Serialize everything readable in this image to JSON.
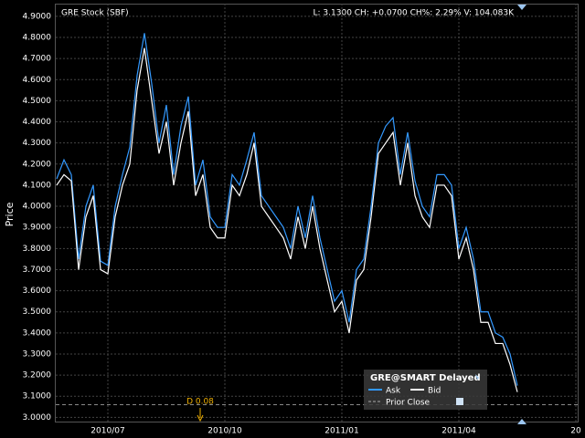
{
  "chart_data": {
    "type": "line",
    "title": "GRE Stock (SBF)",
    "stats": "L: 3.1300 CH: +0.0700 CH%: 2.29% V: 104.083K",
    "y_label": "Price",
    "annotation": "D 0.08",
    "legend_title": "GRE@SMART Delayed",
    "prior_close_label": "Prior Close",
    "prior_close": 3.06,
    "categories": [
      null,
      null,
      null,
      null,
      null,
      null,
      null,
      "2010/07",
      null,
      null,
      null,
      null,
      null,
      null,
      null,
      null,
      null,
      null,
      null,
      null,
      null,
      null,
      null,
      "2010/10",
      null,
      null,
      null,
      null,
      null,
      null,
      null,
      null,
      null,
      null,
      null,
      null,
      null,
      null,
      null,
      "2011/01",
      null,
      null,
      null,
      null,
      null,
      null,
      null,
      null,
      null,
      null,
      null,
      null,
      null,
      null,
      null,
      "2011/04",
      null,
      null,
      null,
      null,
      null,
      null,
      null,
      null,
      null,
      null,
      null,
      null,
      null,
      null,
      null,
      "20"
    ],
    "series": [
      {
        "name": "Ask",
        "color": "#3399ff",
        "values": [
          4.13,
          4.22,
          4.15,
          3.75,
          4.0,
          4.1,
          3.74,
          3.72,
          4.0,
          4.15,
          4.28,
          4.62,
          4.82,
          4.58,
          4.3,
          4.48,
          4.15,
          4.38,
          4.52,
          4.1,
          4.22,
          3.95,
          3.9,
          3.9,
          4.15,
          4.1,
          4.22,
          4.35,
          4.05,
          4.0,
          3.95,
          3.9,
          3.8,
          4.0,
          3.85,
          4.05,
          3.85,
          3.7,
          3.55,
          3.6,
          3.45,
          3.7,
          3.75,
          4.0,
          4.3,
          4.38,
          4.42,
          4.15,
          4.35,
          4.12,
          4.0,
          3.95,
          4.15,
          4.15,
          4.1,
          3.8,
          3.9,
          3.75,
          3.5,
          3.5,
          3.4,
          3.38,
          3.3,
          3.15,
          null,
          null,
          null,
          null,
          null,
          null,
          null,
          null
        ]
      },
      {
        "name": "Bid",
        "color": "#ffffff",
        "values": [
          4.1,
          4.15,
          4.12,
          3.7,
          3.95,
          4.05,
          3.7,
          3.68,
          3.95,
          4.1,
          4.2,
          4.55,
          4.75,
          4.5,
          4.25,
          4.4,
          4.1,
          4.3,
          4.45,
          4.05,
          4.15,
          3.9,
          3.85,
          3.85,
          4.1,
          4.05,
          4.15,
          4.3,
          4.0,
          3.95,
          3.9,
          3.85,
          3.75,
          3.95,
          3.8,
          4.0,
          3.8,
          3.65,
          3.5,
          3.55,
          3.4,
          3.65,
          3.7,
          3.95,
          4.25,
          4.3,
          4.35,
          4.1,
          4.3,
          4.05,
          3.95,
          3.9,
          4.1,
          4.1,
          4.05,
          3.75,
          3.85,
          3.7,
          3.45,
          3.45,
          3.35,
          3.35,
          3.25,
          3.12,
          null,
          null,
          null,
          null,
          null,
          null,
          null,
          null
        ]
      }
    ],
    "ylim": [
      2.98,
      4.96
    ],
    "yticks": [
      {
        "value": 3.0,
        "label": "3.0000"
      },
      {
        "value": 3.1,
        "label": "3.1000"
      },
      {
        "value": 3.2,
        "label": "3.2000"
      },
      {
        "value": 3.3,
        "label": "3.3000"
      },
      {
        "value": 3.4,
        "label": "3.4000"
      },
      {
        "value": 3.5,
        "label": "3.5000"
      },
      {
        "value": 3.6,
        "label": "3.6000"
      },
      {
        "value": 3.7,
        "label": "3.7000"
      },
      {
        "value": 3.8,
        "label": "3.8000"
      },
      {
        "value": 3.9,
        "label": "3.9000"
      },
      {
        "value": 4.0,
        "label": "4.0000"
      },
      {
        "value": 4.1,
        "label": "4.1000"
      },
      {
        "value": 4.2,
        "label": "4.2000"
      },
      {
        "value": 4.3,
        "label": "4.3000"
      },
      {
        "value": 4.4,
        "label": "4.4000"
      },
      {
        "value": 4.5,
        "label": "4.5000"
      },
      {
        "value": 4.6,
        "label": "4.6000"
      },
      {
        "value": 4.7,
        "label": "4.7000"
      },
      {
        "value": 4.8,
        "label": "4.8000"
      },
      {
        "value": 4.9,
        "label": "4.9000"
      }
    ],
    "grid": true
  }
}
